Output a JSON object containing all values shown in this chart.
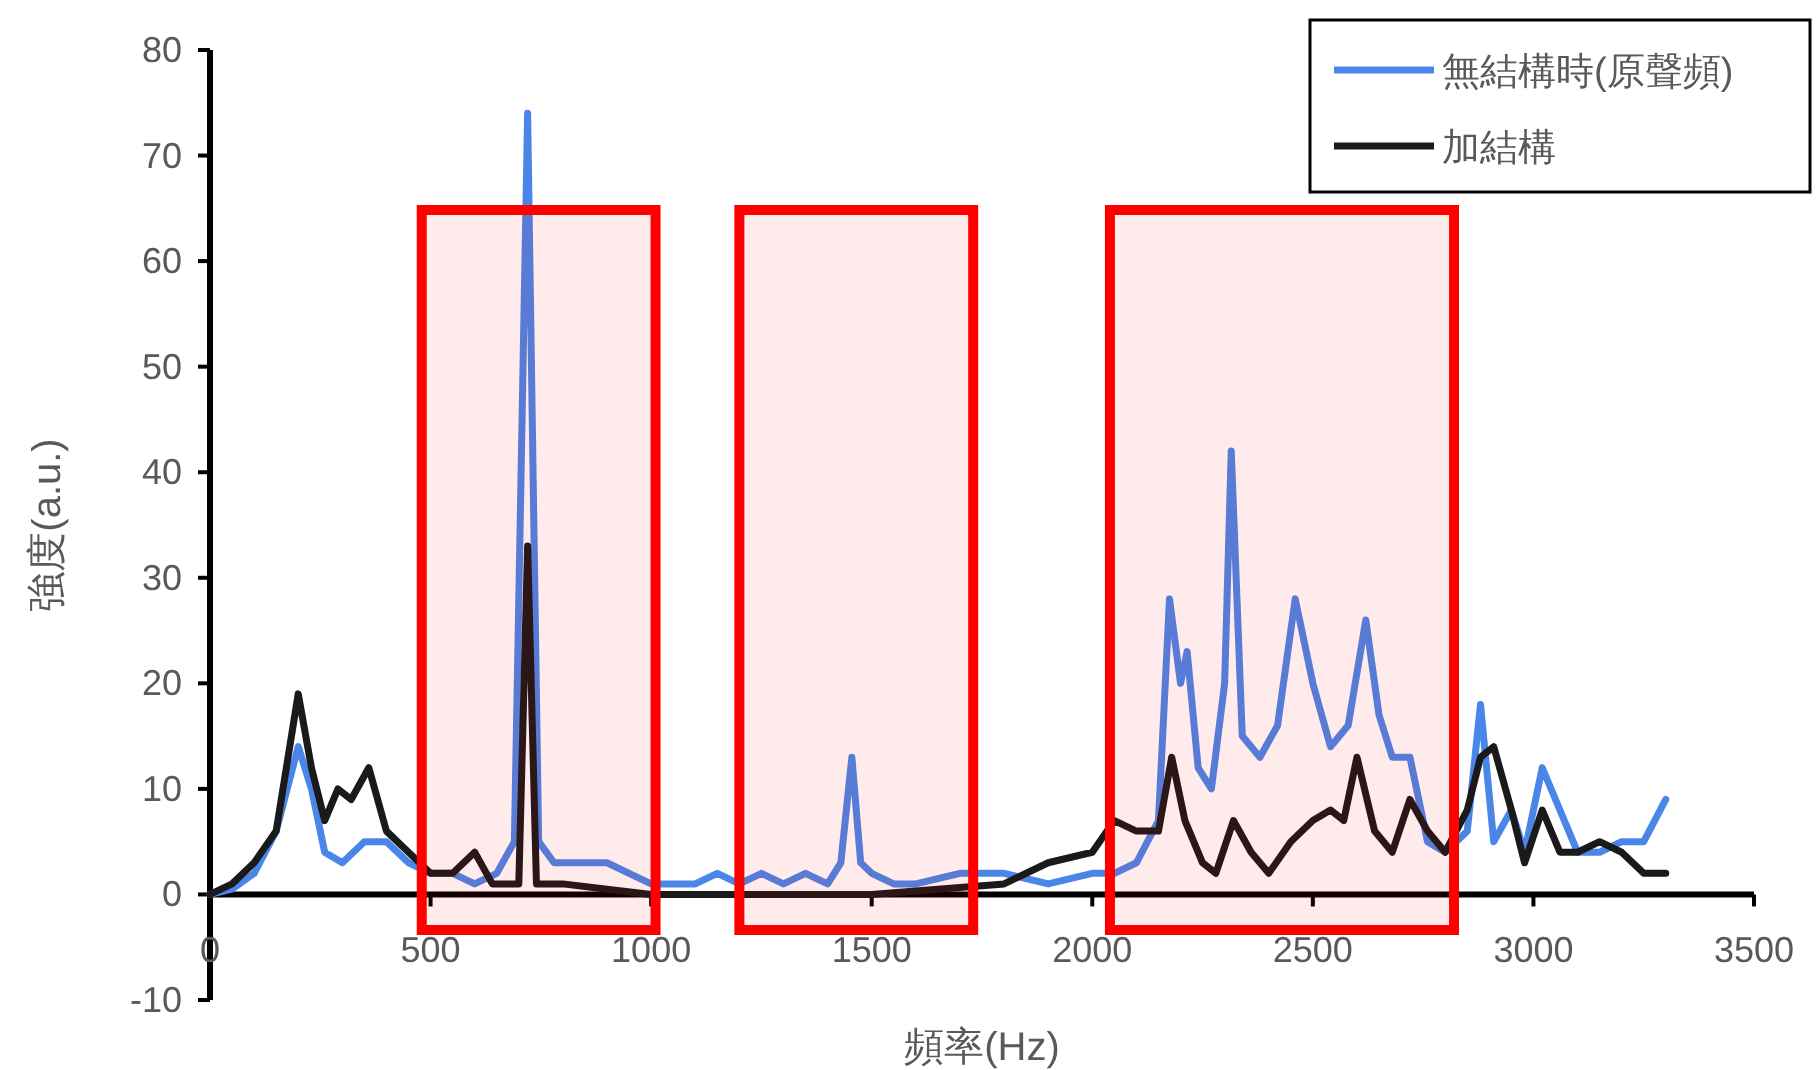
{
  "chart_data": {
    "type": "line",
    "xlabel": "頻率(Hz)",
    "ylabel": "強度(a.u.)",
    "xlim": [
      0,
      3500
    ],
    "xticks": [
      0,
      500,
      1000,
      1500,
      2000,
      2500,
      3000,
      3500
    ],
    "ylim": [
      -10,
      80
    ],
    "yticks": [
      -10,
      0,
      10,
      20,
      30,
      40,
      50,
      60,
      70,
      80
    ],
    "grid": false,
    "legend": "top right",
    "bands": [
      {
        "axis": "x",
        "from": 480,
        "to": 1010,
        "color": "#ff0000"
      },
      {
        "axis": "x",
        "from": 1200,
        "to": 1730,
        "color": "#ff0000"
      },
      {
        "axis": "x",
        "from": 2040,
        "to": 2820,
        "color": "#ff0000"
      }
    ],
    "series": [
      {
        "name": "無結構時(原聲頻)",
        "color": "#4a86e8",
        "x": [
          0,
          50,
          100,
          150,
          200,
          230,
          260,
          300,
          350,
          400,
          450,
          500,
          550,
          600,
          650,
          690,
          720,
          745,
          780,
          850,
          900,
          950,
          1000,
          1050,
          1100,
          1150,
          1200,
          1250,
          1300,
          1350,
          1400,
          1430,
          1455,
          1475,
          1500,
          1550,
          1600,
          1700,
          1800,
          1900,
          2000,
          2050,
          2100,
          2150,
          2175,
          2200,
          2215,
          2240,
          2270,
          2300,
          2315,
          2340,
          2380,
          2420,
          2460,
          2500,
          2540,
          2580,
          2620,
          2650,
          2680,
          2720,
          2760,
          2800,
          2850,
          2880,
          2910,
          2950,
          2980,
          3020,
          3060,
          3100,
          3150,
          3200,
          3250,
          3300
        ],
        "values": [
          0,
          0.5,
          2,
          6,
          14,
          10,
          4,
          3,
          5,
          5,
          3,
          2,
          2,
          1,
          2,
          5,
          74,
          5,
          3,
          3,
          3,
          2,
          1,
          1,
          1,
          2,
          1,
          2,
          1,
          2,
          1,
          3,
          13,
          3,
          2,
          1,
          1,
          2,
          2,
          1,
          2,
          2,
          3,
          7,
          28,
          20,
          23,
          12,
          10,
          20,
          42,
          15,
          13,
          16,
          28,
          20,
          14,
          16,
          26,
          17,
          13,
          13,
          5,
          4,
          6,
          18,
          5,
          8,
          4,
          12,
          8,
          4,
          4,
          5,
          5,
          9
        ]
      },
      {
        "name": "加結構",
        "color": "#1a1a1a",
        "x": [
          0,
          50,
          100,
          150,
          200,
          230,
          260,
          290,
          320,
          360,
          400,
          450,
          500,
          550,
          600,
          640,
          700,
          720,
          740,
          800,
          900,
          1000,
          1200,
          1500,
          1800,
          1900,
          2000,
          2050,
          2100,
          2150,
          2180,
          2210,
          2250,
          2280,
          2320,
          2360,
          2400,
          2450,
          2500,
          2540,
          2570,
          2600,
          2640,
          2680,
          2720,
          2760,
          2800,
          2850,
          2880,
          2910,
          2950,
          2980,
          3020,
          3060,
          3100,
          3150,
          3200,
          3250,
          3300
        ],
        "values": [
          0,
          1,
          3,
          6,
          19,
          12,
          7,
          10,
          9,
          12,
          6,
          4,
          2,
          2,
          4,
          1,
          1,
          33,
          1,
          1,
          0.5,
          0,
          0,
          0,
          1,
          3,
          4,
          7,
          6,
          6,
          13,
          7,
          3,
          2,
          7,
          4,
          2,
          5,
          7,
          8,
          7,
          13,
          6,
          4,
          9,
          6,
          4,
          8,
          13,
          14,
          8,
          3,
          8,
          4,
          4,
          5,
          4,
          2,
          2
        ]
      }
    ]
  }
}
